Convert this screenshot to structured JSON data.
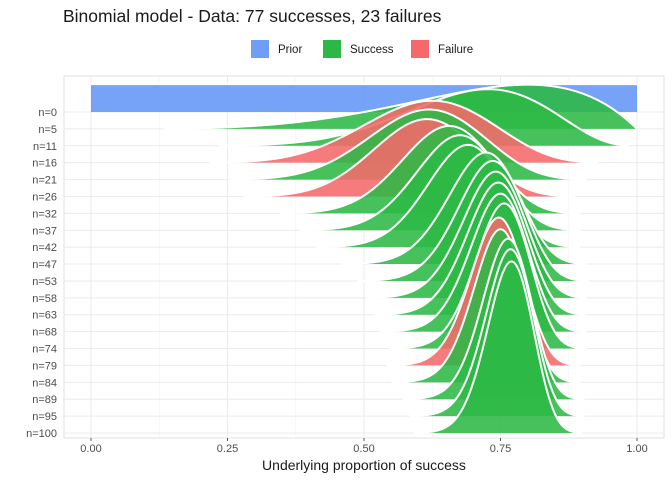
{
  "chart_data": {
    "type": "area",
    "title": "Binomial model - Data: 77 successes, 23 failures",
    "xlabel": "Underlying proportion of success",
    "ylabel": "",
    "xlim": [
      0,
      1
    ],
    "x_ticks": [
      "0.00",
      "0.25",
      "0.50",
      "0.75",
      "1.00"
    ],
    "x_tick_values": [
      0,
      0.25,
      0.5,
      0.75,
      1
    ],
    "grid": true,
    "legend": {
      "position": "top",
      "entries": [
        {
          "name": "Prior",
          "color": "#6f9ef7"
        },
        {
          "name": "Success",
          "color": "#2db845"
        },
        {
          "name": "Failure",
          "color": "#f5696a"
        }
      ]
    },
    "categories": [
      "n=0",
      "n=5",
      "n=11",
      "n=16",
      "n=21",
      "n=26",
      "n=32",
      "n=37",
      "n=42",
      "n=47",
      "n=53",
      "n=58",
      "n=63",
      "n=68",
      "n=74",
      "n=79",
      "n=84",
      "n=89",
      "n=95",
      "n=100"
    ],
    "series": [
      {
        "label": "n=0",
        "successes": 0,
        "failures": 0,
        "kind": "Prior"
      },
      {
        "label": "n=5",
        "successes": 4,
        "failures": 1,
        "kind": "Success"
      },
      {
        "label": "n=11",
        "successes": 8,
        "failures": 3,
        "kind": "Success"
      },
      {
        "label": "n=16",
        "successes": 10,
        "failures": 6,
        "kind": "Failure"
      },
      {
        "label": "n=21",
        "successes": 13,
        "failures": 8,
        "kind": "Success"
      },
      {
        "label": "n=26",
        "successes": 16,
        "failures": 10,
        "kind": "Failure"
      },
      {
        "label": "n=32",
        "successes": 21,
        "failures": 11,
        "kind": "Success"
      },
      {
        "label": "n=37",
        "successes": 25,
        "failures": 12,
        "kind": "Success"
      },
      {
        "label": "n=42",
        "successes": 29,
        "failures": 13,
        "kind": "Success"
      },
      {
        "label": "n=47",
        "successes": 34,
        "failures": 13,
        "kind": "Success"
      },
      {
        "label": "n=53",
        "successes": 39,
        "failures": 14,
        "kind": "Success"
      },
      {
        "label": "n=58",
        "successes": 43,
        "failures": 15,
        "kind": "Success"
      },
      {
        "label": "n=63",
        "successes": 47,
        "failures": 16,
        "kind": "Success"
      },
      {
        "label": "n=68",
        "successes": 51,
        "failures": 17,
        "kind": "Success"
      },
      {
        "label": "n=74",
        "successes": 56,
        "failures": 18,
        "kind": "Success"
      },
      {
        "label": "n=79",
        "successes": 59,
        "failures": 20,
        "kind": "Failure"
      },
      {
        "label": "n=84",
        "successes": 63,
        "failures": 21,
        "kind": "Success"
      },
      {
        "label": "n=89",
        "successes": 68,
        "failures": 21,
        "kind": "Success"
      },
      {
        "label": "n=95",
        "successes": 73,
        "failures": 22,
        "kind": "Success"
      },
      {
        "label": "n=100",
        "successes": 77,
        "failures": 23,
        "kind": "Success"
      }
    ]
  }
}
